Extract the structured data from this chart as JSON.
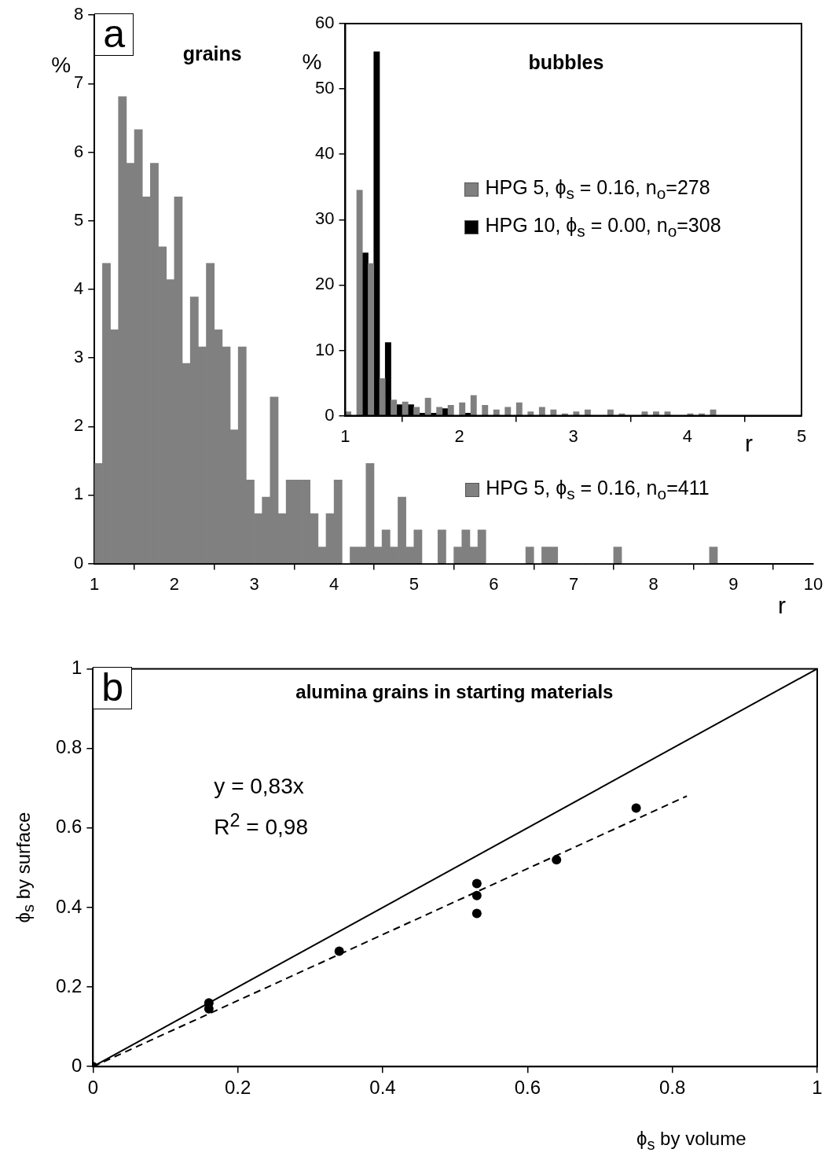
{
  "chart_data": [
    {
      "type": "histogram",
      "title": "grains",
      "xlabel": "r",
      "ylabel": "%",
      "annotations": [
        "a"
      ],
      "bins": [
        1.0,
        1.1,
        1.2,
        1.3,
        1.4,
        1.5,
        1.6,
        1.7,
        1.8,
        1.9,
        2.0,
        2.1,
        2.2,
        2.3,
        2.4,
        2.5,
        2.6,
        2.7,
        2.8,
        2.9,
        3.0,
        3.1,
        3.2,
        3.3,
        3.4,
        3.5,
        3.6,
        3.7,
        3.8,
        3.9,
        4.0,
        4.1,
        4.2,
        4.3,
        4.4,
        4.5,
        4.6,
        4.7,
        4.8,
        4.9,
        5.0,
        5.1,
        5.2,
        5.3,
        5.4,
        5.5,
        5.6,
        5.7,
        5.8,
        5.9,
        6.0,
        6.1,
        6.2,
        6.3,
        6.4,
        6.5,
        6.6,
        6.7,
        6.8,
        6.9,
        7.0,
        7.1,
        7.2,
        7.3,
        7.4,
        7.5,
        7.6,
        7.7,
        7.8,
        7.9,
        8.0,
        8.1,
        8.2,
        8.3,
        8.4,
        8.5,
        8.6,
        8.7,
        8.8
      ],
      "series": [
        {
          "name": "HPG 5, ϕ$_{s}$ = 0.16, n$_{o}$=411",
          "color": "#808080",
          "values": [
            1.46,
            4.38,
            3.41,
            6.81,
            5.84,
            6.33,
            5.35,
            5.84,
            4.62,
            4.14,
            5.35,
            2.92,
            3.89,
            3.16,
            4.38,
            3.41,
            3.16,
            1.95,
            3.16,
            1.22,
            0.73,
            0.97,
            2.43,
            0.73,
            1.22,
            1.22,
            1.22,
            0.73,
            0.24,
            0.73,
            1.22,
            0,
            0.24,
            0.24,
            1.46,
            0.24,
            0.49,
            0.24,
            0.97,
            0.24,
            0.49,
            0,
            0,
            0.49,
            0,
            0.24,
            0.49,
            0.24,
            0.49,
            0,
            0,
            0,
            0,
            0,
            0.24,
            0,
            0.24,
            0.24,
            0,
            0,
            0,
            0,
            0,
            0,
            0,
            0.24,
            0,
            0,
            0,
            0,
            0,
            0,
            0,
            0,
            0,
            0,
            0,
            0.24
          ]
        }
      ],
      "xlim": [
        1,
        10
      ],
      "xticks": [
        1,
        2,
        3,
        4,
        5,
        6,
        7,
        8,
        9,
        10
      ],
      "ylim": [
        0,
        8
      ],
      "yticks": [
        0,
        1,
        2,
        3,
        4,
        5,
        6,
        7,
        8
      ],
      "legend": "right"
    },
    {
      "type": "histogram",
      "title": "bubbles",
      "xlabel": "r",
      "ylabel": "%",
      "bins": [
        1.0,
        1.1,
        1.2,
        1.3,
        1.4,
        1.5,
        1.6,
        1.7,
        1.8,
        1.9,
        2.0,
        2.1,
        2.2,
        2.3,
        2.4,
        2.5,
        2.6,
        2.7,
        2.8,
        2.9,
        3.0,
        3.1,
        3.2,
        3.3,
        3.4,
        3.5,
        3.6,
        3.7,
        3.8,
        3.9,
        4.0,
        4.1,
        4.2,
        4.3
      ],
      "series": [
        {
          "name": "HPG 5, ϕ$_{s}$ = 0.16, n$_{o}$=278",
          "color": "#808080",
          "values": [
            0.6,
            34.5,
            23.3,
            5.7,
            2.4,
            2.1,
            1.3,
            2.7,
            1.3,
            1.6,
            2.0,
            3.1,
            1.6,
            0.9,
            1.3,
            2.0,
            0.6,
            1.3,
            0.9,
            0.3,
            0.6,
            0.9,
            0,
            0.9,
            0.3,
            0,
            0.6,
            0.6,
            0.6,
            0,
            0.3,
            0.3,
            0.9
          ]
        },
        {
          "name": "HPG 10, ϕ$_{s}$ = 0.00, n$_{o}$=308",
          "color": "#000000",
          "values": [
            0,
            24.9,
            55.7,
            11.2,
            1.7,
            1.7,
            0.4,
            0.4,
            1.1,
            0,
            0.4,
            0,
            0,
            0,
            0,
            0,
            0,
            0,
            0,
            0,
            0,
            0,
            0,
            0,
            0,
            0,
            0,
            0,
            0,
            0,
            0,
            0,
            0
          ]
        }
      ],
      "xlim": [
        1,
        5
      ],
      "xticks": [
        1,
        2,
        3,
        4,
        5
      ],
      "ylim": [
        0,
        60
      ],
      "yticks": [
        0,
        10,
        20,
        30,
        40,
        50,
        60
      ],
      "legend": "right"
    },
    {
      "type": "scatter",
      "title": "alumina grains in starting materials",
      "xlabel": "ϕ$_{s}$ by volume",
      "ylabel": "ϕ$_{s}$ by surface",
      "annotations": [
        "b",
        "y = 0,83x",
        "R$^{2}$ = 0,98"
      ],
      "series": [
        {
          "type": "scatter",
          "color": "#000000",
          "marker": "circle",
          "x": [
            0,
            0.16,
            0.16,
            0.34,
            0.53,
            0.53,
            0.53,
            0.64,
            0.75
          ],
          "values": [
            0,
            0.16,
            0.145,
            0.29,
            0.46,
            0.43,
            0.385,
            0.52,
            0.65
          ]
        },
        {
          "type": "line",
          "color": "#000000",
          "line_style": "solid",
          "x": [
            0,
            1
          ],
          "values": [
            0,
            1
          ]
        },
        {
          "type": "line",
          "color": "#000000",
          "line_style": "dashed",
          "x": [
            0,
            0.82
          ],
          "values": [
            0,
            0.68
          ]
        }
      ],
      "xlim": [
        0,
        1
      ],
      "xticks": [
        0,
        0.2,
        0.4,
        0.6,
        0.8,
        1
      ],
      "ylim": [
        0,
        1
      ],
      "yticks": [
        0,
        0.2,
        0.4,
        0.6,
        0.8,
        1
      ],
      "legend": false
    }
  ]
}
